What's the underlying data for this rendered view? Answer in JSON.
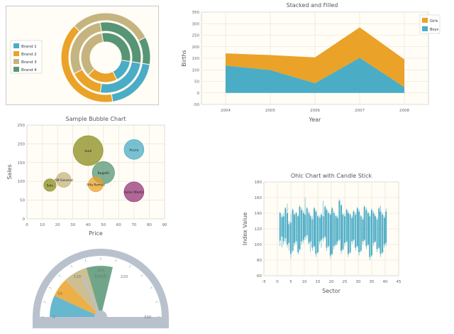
{
  "colors": {
    "blue": "#4bacc6",
    "orange": "#eaa228",
    "tan": "#c5b47f",
    "green": "#579575",
    "plot_bg": "#fffdf6",
    "grid": "#e5e1d1",
    "axis_text": "#666666",
    "border": "#c8c8c8"
  },
  "chart_data": [
    {
      "type": "pie",
      "subtype": "donut",
      "title": "",
      "legend": {
        "placement": "left",
        "entries": [
          "Brand 1",
          "Brand 2",
          "Brand 3",
          "Brand 4"
        ]
      },
      "series": [
        {
          "name": "",
          "values": [
            20,
            40,
            30,
            10
          ]
        },
        {
          "name": "",
          "values": [
            25,
            15,
            30,
            30
          ]
        },
        {
          "name": "",
          "values": [
            15,
            20,
            35,
            30
          ]
        }
      ]
    },
    {
      "type": "area",
      "stacked": true,
      "title": "Stacked and Filled",
      "xlabel": "Year",
      "ylabel": "Births",
      "x": [
        "2004",
        "2005",
        "2006",
        "2007",
        "2008"
      ],
      "xticks": [
        "2004",
        "2005",
        "2006",
        "2007",
        "2008"
      ],
      "yticks": [
        -50,
        0,
        50,
        100,
        150,
        200,
        250,
        300,
        350
      ],
      "ylim": [
        -50,
        350
      ],
      "legend": {
        "placement": "top-right"
      },
      "grid": true,
      "series": [
        {
          "name": "Boys",
          "values": [
            118,
            99,
            42,
            152,
            25
          ]
        },
        {
          "name": "Girls",
          "values": [
            53,
            65,
            112,
            132,
            120
          ]
        }
      ]
    },
    {
      "type": "scatter",
      "subtype": "bubble",
      "title": "Sample Bubble Chart",
      "xlabel": "Price",
      "ylabel": "Sales",
      "xlim": [
        0,
        90
      ],
      "ylim": [
        0,
        250
      ],
      "xticks": [
        0,
        10,
        20,
        30,
        40,
        50,
        60,
        70,
        80,
        90
      ],
      "yticks": [
        0,
        50,
        100,
        150,
        200,
        250
      ],
      "grid": true,
      "points": [
        {
          "label": "Audi",
          "x": 40,
          "y": 182,
          "r": 12,
          "color": "#8c8c1e"
        },
        {
          "label": "Acura",
          "x": 70,
          "y": 185,
          "r": 8,
          "color": "#4bacc6"
        },
        {
          "label": "Bugatti",
          "x": 50,
          "y": 123,
          "r": 9,
          "color": "#579575"
        },
        {
          "label": "Alfa Romeo",
          "x": 45,
          "y": 92,
          "r": 6,
          "color": "#eaa228"
        },
        {
          "label": "AM General",
          "x": 24,
          "y": 104,
          "r": 6,
          "color": "#c5b47f"
        },
        {
          "label": "Aston Martin",
          "x": 70,
          "y": 72,
          "r": 8,
          "color": "#953579"
        },
        {
          "label": "Sale",
          "x": 15,
          "y": 90,
          "r": 5,
          "color": "#8c8c1e"
        }
      ]
    },
    {
      "type": "candlestick",
      "title": "Ohlc Chart with Candle Stick",
      "xlabel": "Sector",
      "ylabel": "Index Value",
      "xlim": [
        -5,
        45
      ],
      "ylim": [
        60,
        180
      ],
      "xticks": [
        -5,
        0,
        5,
        10,
        15,
        20,
        25,
        30,
        35,
        40,
        45
      ],
      "yticks": [
        60,
        80,
        100,
        120,
        140,
        160,
        180
      ],
      "grid": true,
      "ohlc": [
        [
          1,
          140,
          142,
          98,
          105
        ],
        [
          1.7,
          110,
          138,
          96,
          135
        ],
        [
          2.3,
          136,
          140,
          100,
          104
        ],
        [
          3,
          108,
          148,
          103,
          146
        ],
        [
          3.7,
          140,
          152,
          96,
          100
        ],
        [
          4.3,
          102,
          130,
          92,
          126
        ],
        [
          5,
          128,
          139,
          82,
          88
        ],
        [
          5.7,
          92,
          146,
          90,
          144
        ],
        [
          6.3,
          138,
          140,
          98,
          102
        ],
        [
          7,
          104,
          142,
          100,
          140
        ],
        [
          7.7,
          136,
          138,
          87,
          90
        ],
        [
          8.3,
          94,
          150,
          92,
          148
        ],
        [
          9,
          144,
          147,
          100,
          104
        ],
        [
          9.7,
          106,
          143,
          102,
          140
        ],
        [
          10.3,
          138,
          160,
          106,
          110
        ],
        [
          11,
          112,
          148,
          108,
          146
        ],
        [
          11.7,
          140,
          143,
          100,
          102
        ],
        [
          12.3,
          104,
          138,
          90,
          136
        ],
        [
          13,
          132,
          136,
          92,
          96
        ],
        [
          13.7,
          98,
          148,
          96,
          146
        ],
        [
          14.3,
          142,
          144,
          84,
          88
        ],
        [
          15,
          90,
          138,
          88,
          136
        ],
        [
          15.7,
          134,
          137,
          100,
          104
        ],
        [
          16.3,
          106,
          140,
          96,
          138
        ],
        [
          17,
          136,
          156,
          104,
          108
        ],
        [
          17.7,
          110,
          150,
          108,
          148
        ],
        [
          18.3,
          144,
          146,
          92,
          96
        ],
        [
          19,
          98,
          142,
          96,
          140
        ],
        [
          19.7,
          138,
          140,
          82,
          86
        ],
        [
          20.3,
          88,
          148,
          86,
          146
        ],
        [
          21,
          140,
          143,
          94,
          98
        ],
        [
          21.7,
          100,
          138,
          98,
          136
        ],
        [
          22.3,
          134,
          137,
          100,
          104
        ],
        [
          23,
          106,
          158,
          104,
          156
        ],
        [
          23.7,
          150,
          152,
          88,
          92
        ],
        [
          24.3,
          94,
          140,
          92,
          138
        ],
        [
          25,
          136,
          139,
          98,
          102
        ],
        [
          25.7,
          104,
          146,
          102,
          144
        ],
        [
          26.3,
          140,
          143,
          84,
          88
        ],
        [
          27,
          90,
          140,
          88,
          138
        ],
        [
          27.7,
          134,
          137,
          100,
          104
        ],
        [
          28.3,
          106,
          144,
          104,
          142
        ],
        [
          29,
          138,
          141,
          92,
          96
        ],
        [
          29.7,
          98,
          148,
          96,
          146
        ],
        [
          30.3,
          142,
          145,
          86,
          90
        ],
        [
          31,
          92,
          138,
          90,
          136
        ],
        [
          31.7,
          132,
          135,
          100,
          104
        ],
        [
          32.3,
          106,
          150,
          104,
          148
        ],
        [
          33,
          144,
          147,
          94,
          98
        ],
        [
          33.7,
          100,
          142,
          98,
          140
        ],
        [
          34.3,
          136,
          139,
          80,
          84
        ],
        [
          35,
          86,
          146,
          84,
          144
        ],
        [
          35.7,
          140,
          143,
          98,
          102
        ],
        [
          36.3,
          104,
          138,
          102,
          136
        ],
        [
          37,
          132,
          135,
          90,
          94
        ],
        [
          37.7,
          96,
          148,
          94,
          146
        ],
        [
          38.3,
          142,
          150,
          84,
          88
        ],
        [
          39,
          90,
          140,
          88,
          138
        ],
        [
          39.7,
          134,
          137,
          96,
          100
        ],
        [
          40.3,
          102,
          146,
          98,
          142
        ]
      ]
    },
    {
      "type": "gauge",
      "title": "",
      "units_label": "km/h",
      "range": [
        0,
        330
      ],
      "value": 122,
      "tick_labels": [
        "0",
        "55",
        "110",
        "165",
        "220",
        "330"
      ],
      "bands": [
        {
          "from": 0,
          "to": 45,
          "color": "#4bacc6"
        },
        {
          "from": 45,
          "to": 85,
          "color": "#eaa228"
        },
        {
          "from": 85,
          "to": 135,
          "color": "#c5b47f"
        },
        {
          "from": 135,
          "to": 190,
          "color": "#579575"
        }
      ]
    }
  ]
}
